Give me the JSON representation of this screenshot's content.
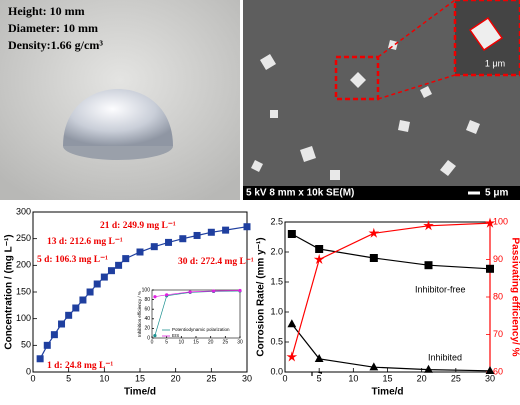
{
  "photo": {
    "lines": [
      "Height: 10 mm",
      "Diameter: 10 mm",
      "Density:1.66 g/cm³"
    ]
  },
  "sem": {
    "info": "5 kV 8 mm x 10k SE(M)",
    "scale": "5 μm",
    "inset_scale": "1 μm"
  },
  "chart_data": [
    {
      "type": "line",
      "xlabel": "Time/d",
      "ylabel": "Concentration / (mg L⁻¹)",
      "xlim": [
        0,
        30
      ],
      "xticks": [
        0,
        5,
        10,
        15,
        20,
        25,
        30
      ],
      "ylim": [
        0,
        300
      ],
      "yticks": [
        0,
        50,
        100,
        150,
        200,
        250,
        300
      ],
      "series": [
        {
          "color": "#1f3f9f",
          "marker": "square",
          "x": [
            1,
            2,
            3,
            4,
            5,
            6,
            7,
            8,
            9,
            10,
            11,
            12,
            13,
            15,
            17,
            19,
            21,
            23,
            25,
            27,
            30
          ],
          "values": [
            24.8,
            50,
            70,
            90,
            106.3,
            120,
            135,
            150,
            165,
            178,
            190,
            200,
            212.6,
            225,
            235,
            243,
            249.9,
            256,
            262,
            266,
            272.4
          ]
        }
      ],
      "annotations": [
        "1 d: 24.8 mg L⁻¹",
        "5 d: 106.3 mg L⁻¹",
        "13 d: 212.6 mg L⁻¹",
        "21 d: 249.9 mg L⁻¹",
        "30 d: 272.4 mg L⁻¹"
      ]
    },
    {
      "type": "line",
      "ylabel": "Inhibition efficiency / %",
      "xlim": [
        0,
        30
      ],
      "xticks": [
        0,
        5,
        10,
        15,
        20,
        25,
        30
      ],
      "ylim": [
        0,
        100
      ],
      "yticks": [
        0,
        20,
        40,
        60,
        80,
        100
      ],
      "series": [
        {
          "name": "Potentiodynamic polarization",
          "color": "#1a8f8f",
          "marker": "circle",
          "x": [
            1,
            5,
            13,
            21,
            30
          ],
          "values": [
            5,
            88,
            95,
            97,
            98
          ]
        },
        {
          "name": "EIS",
          "color": "#e020e0",
          "marker": "circle",
          "x": [
            1,
            5,
            13,
            21,
            30
          ],
          "values": [
            86,
            90,
            96,
            98,
            99
          ]
        }
      ]
    },
    {
      "type": "line",
      "xlabel": "Time/d",
      "ylabel": "Corrosion Rate/ (mm y⁻¹)",
      "y2label": "Passivating efficiency/ %",
      "xlim": [
        0,
        30
      ],
      "xticks": [
        0,
        5,
        10,
        15,
        20,
        25,
        30
      ],
      "ylim": [
        0,
        2.5
      ],
      "yticks": [
        {
          "value": 0,
          "label": "0.0"
        },
        0.5,
        {
          "value": 1,
          "label": "1.0"
        },
        1.5,
        {
          "value": 2,
          "label": "2.0"
        },
        2.5
      ],
      "y2lim": [
        60,
        100
      ],
      "y2ticks": [
        60,
        70,
        80,
        90,
        100
      ],
      "series": [
        {
          "name": "Inhibitor-free",
          "color": "#000000",
          "marker": "square",
          "x": [
            1,
            5,
            13,
            21,
            30
          ],
          "values": [
            2.3,
            2.05,
            1.9,
            1.78,
            1.72
          ]
        },
        {
          "name": "Inhibited",
          "color": "#000000",
          "marker": "triangle",
          "x": [
            1,
            5,
            13,
            21,
            30
          ],
          "values": [
            0.8,
            0.22,
            0.08,
            0.04,
            0.02
          ]
        },
        {
          "color": "#ff0000",
          "marker": "star",
          "axis": "y2",
          "x": [
            1,
            5,
            13,
            21,
            30
          ],
          "values": [
            64,
            90,
            97,
            99,
            99.7
          ]
        }
      ]
    }
  ]
}
